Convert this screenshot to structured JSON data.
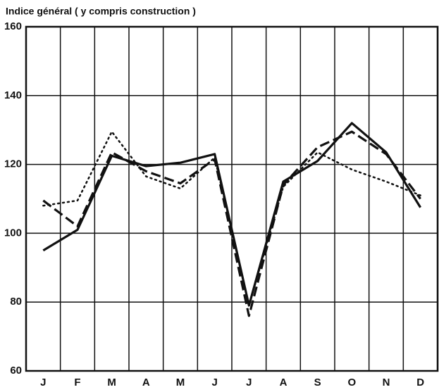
{
  "chart_data": {
    "type": "line",
    "title": "Indice général ( y compris construction )",
    "categories": [
      "J",
      "F",
      "M",
      "A",
      "M",
      "J",
      "J",
      "A",
      "S",
      "O",
      "N",
      "D"
    ],
    "series": [
      {
        "color": "#111",
        "style": "solid",
        "values": [
          95,
          101,
          122.5,
          119.5,
          120.5,
          123,
          79,
          115,
          121,
          132,
          123.5,
          107.5
        ]
      },
      {
        "color": "#111",
        "style": "dashed",
        "values": [
          109.5,
          102,
          123.5,
          118,
          114.5,
          121.5,
          76,
          114,
          125,
          129.5,
          123,
          110
        ]
      },
      {
        "color": "#111",
        "style": "dotted",
        "values": [
          108,
          109.5,
          129.5,
          116.5,
          113,
          122,
          79,
          113.5,
          123.5,
          118.5,
          115,
          111
        ]
      }
    ],
    "ylim": [
      60,
      160
    ],
    "yticks": [
      60,
      80,
      100,
      120,
      140,
      160
    ],
    "grid": true
  }
}
